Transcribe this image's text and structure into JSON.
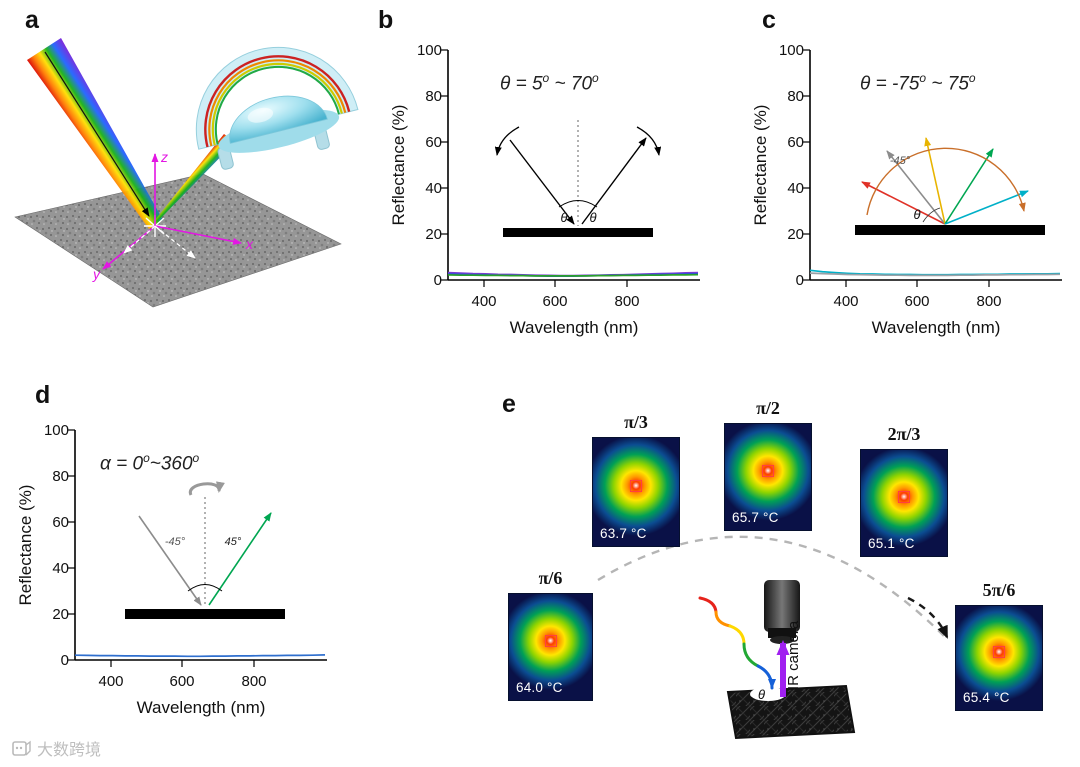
{
  "figure": {
    "panel_labels": {
      "a": "a",
      "b": "b",
      "c": "c",
      "d": "d",
      "e": "e"
    }
  },
  "panel_a": {
    "axes": {
      "x": "x",
      "y": "y",
      "z": "z"
    }
  },
  "chart_data": [
    {
      "id": "b",
      "type": "line",
      "title": "",
      "annotation": "θ = 5° ~ 70°",
      "ann_parts": [
        "θ = 5",
        "o",
        " ~ 70",
        "o"
      ],
      "xlabel": "Wavelength (nm)",
      "ylabel": "Reflectance (%)",
      "xlim": [
        300,
        1000
      ],
      "ylim": [
        0,
        100
      ],
      "xticks": [
        400,
        600,
        800
      ],
      "yticks": [
        0,
        20,
        40,
        60,
        80,
        100
      ],
      "xticklabels": [
        "400",
        "600",
        "800"
      ],
      "yticklabels": [
        "0",
        "20",
        "40",
        "60",
        "80",
        "100"
      ],
      "grid": false,
      "legend": "none",
      "inset_labels": {
        "theta_left": "θ",
        "theta_right": "θ"
      },
      "x_shared": [
        300,
        335,
        370,
        405,
        440,
        475,
        510,
        545,
        580,
        615,
        650,
        685,
        720,
        755,
        790,
        825,
        860,
        895,
        930,
        965,
        1000
      ],
      "series": [
        {
          "name": "reflectance angle-sweep (violet)",
          "color": "#7a3bd4",
          "x": [
            300,
            335,
            370,
            405,
            440,
            475,
            510,
            545,
            580,
            615,
            650,
            685,
            720,
            755,
            790,
            825,
            860,
            895,
            930,
            965,
            1000
          ],
          "y": [
            3.2,
            3.0,
            2.8,
            2.7,
            2.5,
            2.4,
            2.2,
            2.1,
            2.0,
            1.9,
            1.9,
            2.0,
            2.1,
            2.2,
            2.3,
            2.5,
            2.6,
            2.8,
            2.9,
            3.1,
            3.2
          ]
        },
        {
          "name": "reflectance angle-sweep (blue)",
          "color": "#2d50d8",
          "x": [
            300,
            335,
            370,
            405,
            440,
            475,
            510,
            545,
            580,
            615,
            650,
            685,
            720,
            755,
            790,
            825,
            860,
            895,
            930,
            965,
            1000
          ],
          "y": [
            2.6,
            2.5,
            2.3,
            2.2,
            2.1,
            2.0,
            1.9,
            1.8,
            1.7,
            1.7,
            1.7,
            1.8,
            1.9,
            2.0,
            2.1,
            2.2,
            2.3,
            2.4,
            2.5,
            2.6,
            2.7
          ]
        },
        {
          "name": "reflectance angle-sweep (green)",
          "color": "#2aa02a",
          "x": [
            300,
            335,
            370,
            405,
            440,
            475,
            510,
            545,
            580,
            615,
            650,
            685,
            720,
            755,
            790,
            825,
            860,
            895,
            930,
            965,
            1000
          ],
          "y": [
            2.2,
            2.1,
            2.1,
            2.0,
            2.0,
            1.9,
            1.9,
            1.8,
            1.8,
            1.8,
            1.8,
            1.8,
            1.9,
            1.9,
            2.0,
            2.0,
            2.1,
            2.1,
            2.2,
            2.2,
            2.3
          ]
        }
      ]
    },
    {
      "id": "c",
      "type": "line",
      "title": "",
      "annotation": "θ = -75° ~ 75°",
      "ann_parts": [
        "θ = -75",
        "o",
        " ~ 75",
        "o"
      ],
      "xlabel": "Wavelength (nm)",
      "ylabel": "Reflectance (%)",
      "xlim": [
        300,
        1000
      ],
      "ylim": [
        0,
        100
      ],
      "xticks": [
        400,
        600,
        800
      ],
      "yticks": [
        0,
        20,
        40,
        60,
        80,
        100
      ],
      "xticklabels": [
        "400",
        "600",
        "800"
      ],
      "yticklabels": [
        "0",
        "20",
        "40",
        "60",
        "80",
        "100"
      ],
      "grid": false,
      "legend": "none",
      "inset_labels": {
        "minus45": "-45°",
        "theta": "θ"
      },
      "series": [
        {
          "name": "reflectance angle-sweep (cyan)",
          "color": "#00b0c8",
          "x": [
            300,
            335,
            370,
            405,
            440,
            475,
            510,
            545,
            580,
            615,
            650,
            685,
            720,
            755,
            790,
            825,
            860,
            895,
            930,
            965,
            1000
          ],
          "y": [
            4.2,
            3.6,
            3.2,
            2.9,
            2.7,
            2.6,
            2.5,
            2.4,
            2.4,
            2.3,
            2.3,
            2.3,
            2.4,
            2.4,
            2.5,
            2.5,
            2.6,
            2.6,
            2.7,
            2.7,
            2.8
          ]
        },
        {
          "name": "reflectance angle-sweep (gray)",
          "color": "#9aa0a6",
          "x": [
            300,
            335,
            370,
            405,
            440,
            475,
            510,
            545,
            580,
            615,
            650,
            685,
            720,
            755,
            790,
            825,
            860,
            895,
            930,
            965,
            1000
          ],
          "y": [
            3.0,
            2.8,
            2.6,
            2.4,
            2.3,
            2.2,
            2.1,
            2.1,
            2.0,
            2.0,
            2.0,
            2.0,
            2.1,
            2.1,
            2.2,
            2.2,
            2.3,
            2.3,
            2.4,
            2.4,
            2.5
          ]
        }
      ]
    },
    {
      "id": "d",
      "type": "line",
      "title": "",
      "annotation": "α = 0°~360°",
      "ann_parts": [
        "α = 0",
        "o",
        "~360",
        "o"
      ],
      "xlabel": "Wavelength (nm)",
      "ylabel": "Reflectance (%)",
      "xlim": [
        300,
        1000
      ],
      "ylim": [
        0,
        100
      ],
      "xticks": [
        400,
        600,
        800
      ],
      "yticks": [
        0,
        20,
        40,
        60,
        80,
        100
      ],
      "xticklabels": [
        "400",
        "600",
        "800"
      ],
      "yticklabels": [
        "0",
        "20",
        "40",
        "60",
        "80",
        "100"
      ],
      "grid": false,
      "legend": "none",
      "inset_labels": {
        "minus45": "-45°",
        "plus45": "45°"
      },
      "series": [
        {
          "name": "reflectance azimuth-sweep (blue)",
          "color": "#2f6fce",
          "x": [
            300,
            335,
            370,
            405,
            440,
            475,
            510,
            545,
            580,
            615,
            650,
            685,
            720,
            755,
            790,
            825,
            860,
            895,
            930,
            965,
            1000
          ],
          "y": [
            2.1,
            2.0,
            1.9,
            1.9,
            1.8,
            1.8,
            1.7,
            1.7,
            1.7,
            1.6,
            1.6,
            1.7,
            1.7,
            1.8,
            1.8,
            1.9,
            1.9,
            2.0,
            2.0,
            2.1,
            2.2
          ]
        }
      ]
    }
  ],
  "panel_e": {
    "thermal_images": [
      {
        "angle_label": "π/6",
        "temperature": "64.0 °C"
      },
      {
        "angle_label": "π/3",
        "temperature": "63.7 °C"
      },
      {
        "angle_label": "π/2",
        "temperature": "65.7 °C"
      },
      {
        "angle_label": "2π/3",
        "temperature": "65.1 °C"
      },
      {
        "angle_label": "5π/6",
        "temperature": "65.4 °C"
      }
    ],
    "ir_camera_label": "IR camera",
    "theta_label": "θ"
  },
  "watermark": {
    "text": "大数跨境"
  }
}
